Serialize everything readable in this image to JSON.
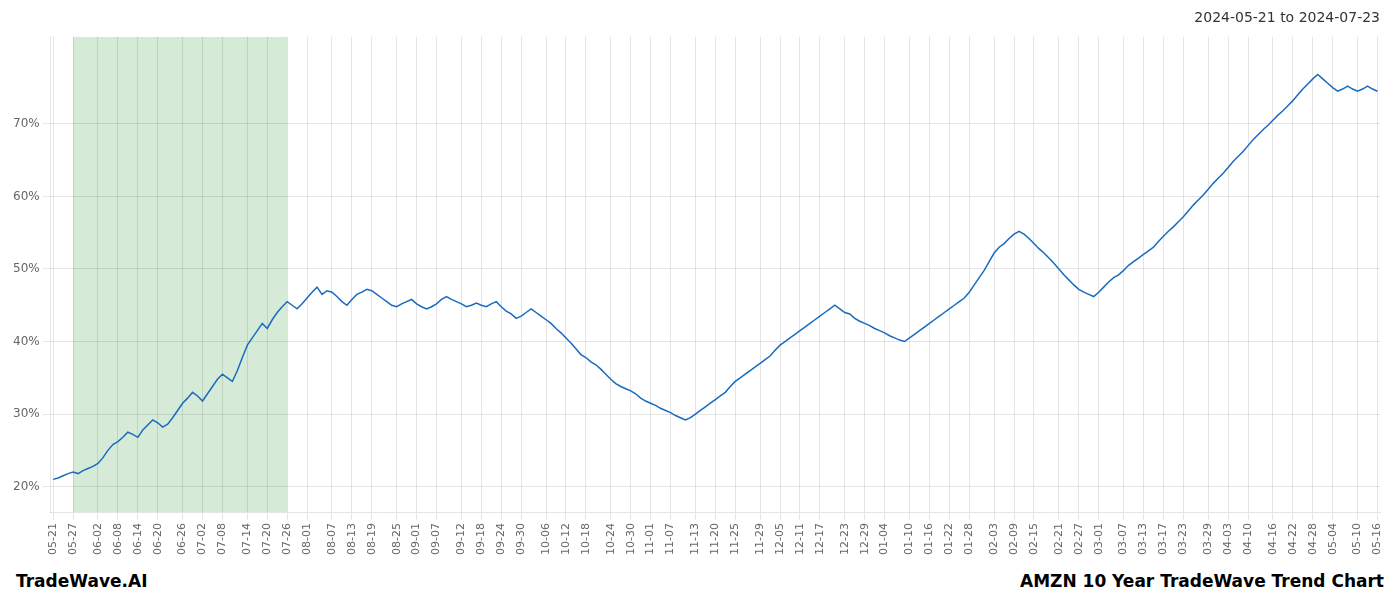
{
  "chart_data": {
    "type": "line",
    "title": "2024-05-21 to 2024-07-23",
    "annotations": [
      "TradeWave.AI",
      "AMZN 10 Year TradeWave Trend Chart"
    ],
    "color": "#1a6bbf",
    "grid": true,
    "ylim": [
      0.165,
      0.82
    ],
    "yticks": [
      {
        "value": 0.2,
        "label": "20%"
      },
      {
        "value": 0.3,
        "label": "30%"
      },
      {
        "value": 0.4,
        "label": "40%"
      },
      {
        "value": 0.5,
        "label": "50%"
      },
      {
        "value": 0.6,
        "label": "60%"
      },
      {
        "value": 0.7,
        "label": "70%"
      }
    ],
    "highlight": {
      "from": "05-27",
      "to": "07-26",
      "color": "#d5ebd7"
    },
    "categories": [
      "05-21",
      null,
      null,
      null,
      "05-27",
      null,
      null,
      null,
      null,
      "06-02",
      null,
      null,
      null,
      "06-08",
      null,
      null,
      null,
      "06-14",
      null,
      null,
      null,
      "06-20",
      null,
      null,
      null,
      null,
      "06-26",
      null,
      null,
      null,
      "07-02",
      null,
      null,
      null,
      "07-08",
      null,
      null,
      null,
      null,
      "07-14",
      null,
      null,
      null,
      "07-20",
      null,
      null,
      null,
      "07-26",
      null,
      null,
      null,
      "08-01",
      null,
      null,
      null,
      null,
      "08-07",
      null,
      null,
      null,
      "08-13",
      null,
      null,
      null,
      "08-19",
      null,
      null,
      null,
      null,
      "08-25",
      null,
      null,
      null,
      "09-01",
      null,
      null,
      null,
      "09-07",
      null,
      null,
      null,
      null,
      "09-12",
      null,
      null,
      null,
      "09-18",
      null,
      null,
      null,
      "09-24",
      null,
      null,
      null,
      "09-30",
      null,
      null,
      null,
      null,
      "10-06",
      null,
      null,
      null,
      "10-12",
      null,
      null,
      null,
      "10-18",
      null,
      null,
      null,
      null,
      "10-24",
      null,
      null,
      null,
      "10-30",
      null,
      null,
      null,
      "11-01",
      null,
      null,
      null,
      "11-07",
      null,
      null,
      null,
      null,
      "11-13",
      null,
      null,
      null,
      "11-20",
      null,
      null,
      null,
      "11-25",
      null,
      null,
      null,
      null,
      "11-29",
      null,
      null,
      null,
      "12-05",
      null,
      null,
      null,
      "12-11",
      null,
      null,
      null,
      "12-17",
      null,
      null,
      null,
      null,
      "12-23",
      null,
      null,
      null,
      "12-29",
      null,
      null,
      null,
      "01-04",
      null,
      null,
      null,
      null,
      "01-10",
      null,
      null,
      null,
      "01-16",
      null,
      null,
      null,
      "01-22",
      null,
      null,
      null,
      "01-28",
      null,
      null,
      null,
      null,
      "02-03",
      null,
      null,
      null,
      "02-09",
      null,
      null,
      null,
      "02-15",
      null,
      null,
      null,
      null,
      "02-21",
      null,
      null,
      null,
      "02-27",
      null,
      null,
      null,
      "03-01",
      null,
      null,
      null,
      null,
      "03-07",
      null,
      null,
      null,
      "03-13",
      null,
      null,
      null,
      "03-17",
      null,
      null,
      null,
      "03-23",
      null,
      null,
      null,
      null,
      "03-29",
      null,
      null,
      null,
      "04-03",
      null,
      null,
      null,
      "04-10",
      null,
      null,
      null,
      null,
      "04-16",
      null,
      null,
      null,
      "04-22",
      null,
      null,
      null,
      "04-28",
      null,
      null,
      null,
      "05-04",
      null,
      null,
      null,
      null,
      "05-10",
      null,
      null,
      null,
      "05-16"
    ],
    "values": [
      0.21,
      0.212,
      0.215,
      0.218,
      0.22,
      0.218,
      0.222,
      0.225,
      0.228,
      0.232,
      0.24,
      0.25,
      0.258,
      0.262,
      0.268,
      0.275,
      0.272,
      0.268,
      0.278,
      0.285,
      0.292,
      0.288,
      0.282,
      0.286,
      0.295,
      0.305,
      0.315,
      0.322,
      0.33,
      0.325,
      0.318,
      0.328,
      0.338,
      0.348,
      0.355,
      0.35,
      0.345,
      0.36,
      0.378,
      0.395,
      0.405,
      0.415,
      0.425,
      0.418,
      0.43,
      0.44,
      0.448,
      0.455,
      0.45,
      0.445,
      0.452,
      0.46,
      0.468,
      0.475,
      0.465,
      0.47,
      0.468,
      0.462,
      0.455,
      0.45,
      0.458,
      0.465,
      0.468,
      0.472,
      0.47,
      0.465,
      0.46,
      0.455,
      0.45,
      0.448,
      0.452,
      0.455,
      0.458,
      0.452,
      0.448,
      0.445,
      0.448,
      0.452,
      0.458,
      0.462,
      0.458,
      0.455,
      0.452,
      0.448,
      0.45,
      0.453,
      0.45,
      0.448,
      0.452,
      0.455,
      0.448,
      0.442,
      0.438,
      0.432,
      0.435,
      0.44,
      0.445,
      0.44,
      0.435,
      0.43,
      0.425,
      0.418,
      0.412,
      0.405,
      0.398,
      0.39,
      0.382,
      0.378,
      0.372,
      0.368,
      0.362,
      0.355,
      0.348,
      0.342,
      0.338,
      0.335,
      0.332,
      0.328,
      0.322,
      0.318,
      0.315,
      0.312,
      0.308,
      0.305,
      0.302,
      0.298,
      0.295,
      0.292,
      0.295,
      0.3,
      0.305,
      0.31,
      0.315,
      0.32,
      0.325,
      0.33,
      0.338,
      0.345,
      0.35,
      0.355,
      0.36,
      0.365,
      0.37,
      0.375,
      0.38,
      0.388,
      0.395,
      0.4,
      0.405,
      0.41,
      0.415,
      0.42,
      0.425,
      0.43,
      0.435,
      0.44,
      0.445,
      0.45,
      0.445,
      0.44,
      0.438,
      0.432,
      0.428,
      0.425,
      0.422,
      0.418,
      0.415,
      0.412,
      0.408,
      0.405,
      0.402,
      0.4,
      0.405,
      0.41,
      0.415,
      0.42,
      0.425,
      0.43,
      0.435,
      0.44,
      0.445,
      0.45,
      0.455,
      0.46,
      0.468,
      0.478,
      0.488,
      0.498,
      0.51,
      0.522,
      0.53,
      0.535,
      0.542,
      0.548,
      0.552,
      0.548,
      0.542,
      0.535,
      0.528,
      0.522,
      0.515,
      0.508,
      0.5,
      0.492,
      0.485,
      0.478,
      0.472,
      0.468,
      0.465,
      0.462,
      0.468,
      0.475,
      0.482,
      0.488,
      0.492,
      0.498,
      0.505,
      0.51,
      0.515,
      0.52,
      0.525,
      0.53,
      0.538,
      0.545,
      0.552,
      0.558,
      0.565,
      0.572,
      0.58,
      0.588,
      0.595,
      0.602,
      0.61,
      0.618,
      0.625,
      0.632,
      0.64,
      0.648,
      0.655,
      0.662,
      0.67,
      0.678,
      0.685,
      0.692,
      0.698,
      0.705,
      0.712,
      0.718,
      0.725,
      0.732,
      0.74,
      0.748,
      0.755,
      0.762,
      0.768,
      0.762,
      0.756,
      0.75,
      0.745,
      0.748,
      0.752,
      0.748,
      0.745,
      0.748,
      0.752,
      0.748,
      0.745
    ]
  }
}
